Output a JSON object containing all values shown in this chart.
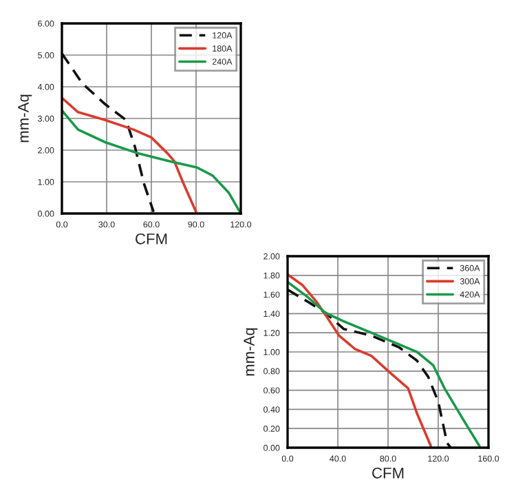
{
  "chart_data": [
    {
      "type": "line",
      "xlabel": "CFM",
      "ylabel": "mm-Aq",
      "xlim": [
        0,
        120
      ],
      "ylim": [
        0,
        6
      ],
      "xticks": [
        {
          "value": 0,
          "label": "0.0"
        },
        {
          "value": 30,
          "label": "30.0"
        },
        {
          "value": 60,
          "label": "60.0"
        },
        {
          "value": 90,
          "label": "90.0"
        },
        {
          "value": 120,
          "label": "120.0"
        }
      ],
      "yticks": [
        {
          "value": 0,
          "label": "0.00"
        },
        {
          "value": 1,
          "label": "1.00"
        },
        {
          "value": 2,
          "label": "2.00"
        },
        {
          "value": 3,
          "label": "3.00"
        },
        {
          "value": 4,
          "label": "4.00"
        },
        {
          "value": 5,
          "label": "5.00"
        },
        {
          "value": 6,
          "label": "6.00"
        }
      ],
      "grid": true,
      "legend": "top right",
      "series": [
        {
          "name": "120A",
          "color": "#111111",
          "line_style": "dashed",
          "x": [
            0,
            13.8,
            29,
            43,
            49,
            55,
            61.5
          ],
          "values": [
            5.05,
            4.1,
            3.45,
            2.95,
            2.1,
            0.95,
            0.05
          ]
        },
        {
          "name": "180A",
          "color": "#d93c2e",
          "line_style": "solid",
          "x": [
            0,
            10.8,
            29,
            48,
            60,
            70.8,
            75.4,
            81.5,
            90
          ],
          "values": [
            3.65,
            3.2,
            2.95,
            2.65,
            2.4,
            1.9,
            1.65,
            0.95,
            0.05
          ]
        },
        {
          "name": "240A",
          "color": "#1a9a4a",
          "line_style": "solid",
          "x": [
            0,
            10.8,
            29,
            51,
            72,
            90.8,
            101,
            112,
            120
          ],
          "values": [
            3.25,
            2.65,
            2.25,
            1.9,
            1.65,
            1.45,
            1.2,
            0.65,
            0
          ]
        }
      ]
    },
    {
      "type": "line",
      "xlabel": "CFM",
      "ylabel": "mm-Aq",
      "xlim": [
        0,
        160
      ],
      "ylim": [
        0,
        2
      ],
      "xticks": [
        {
          "value": 0,
          "label": "0.0"
        },
        {
          "value": 40,
          "label": "40.0"
        },
        {
          "value": 80,
          "label": "80.0"
        },
        {
          "value": 120,
          "label": "120.0"
        },
        {
          "value": 160,
          "label": "160.0"
        }
      ],
      "yticks": [
        {
          "value": 0,
          "label": "0.00"
        },
        {
          "value": 0.2,
          "label": "0.20"
        },
        {
          "value": 0.4,
          "label": "0.40"
        },
        {
          "value": 0.6,
          "label": "0.60"
        },
        {
          "value": 0.8,
          "label": "0.80"
        },
        {
          "value": 1.0,
          "label": "1.00"
        },
        {
          "value": 1.2,
          "label": "1.20"
        },
        {
          "value": 1.4,
          "label": "1.40"
        },
        {
          "value": 1.6,
          "label": "1.60"
        },
        {
          "value": 1.8,
          "label": "1.80"
        },
        {
          "value": 2.0,
          "label": "2.00"
        }
      ],
      "grid": true,
      "legend": "top right",
      "series": [
        {
          "name": "360A",
          "color": "#111111",
          "line_style": "dashed",
          "x": [
            0,
            15.4,
            30,
            44.7,
            66.7,
            88.6,
            103,
            112,
            120,
            127,
            130
          ],
          "values": [
            1.65,
            1.53,
            1.41,
            1.24,
            1.17,
            1.05,
            0.91,
            0.74,
            0.48,
            0.05,
            0
          ]
        },
        {
          "name": "300A",
          "color": "#d93c2e",
          "line_style": "solid",
          "x": [
            0,
            11.7,
            22.7,
            30,
            41,
            53.8,
            66.7,
            81,
            96,
            103,
            114
          ],
          "values": [
            1.81,
            1.7,
            1.53,
            1.39,
            1.17,
            1.03,
            0.96,
            0.79,
            0.62,
            0.36,
            0.02
          ]
        },
        {
          "name": "420A",
          "color": "#1a9a4a",
          "line_style": "solid",
          "x": [
            0,
            15.4,
            30,
            44.7,
            66.7,
            88.6,
            103,
            116,
            125,
            140,
            152.7
          ],
          "values": [
            1.73,
            1.58,
            1.41,
            1.32,
            1.2,
            1.08,
            1.0,
            0.86,
            0.62,
            0.29,
            0.02
          ]
        }
      ]
    }
  ]
}
